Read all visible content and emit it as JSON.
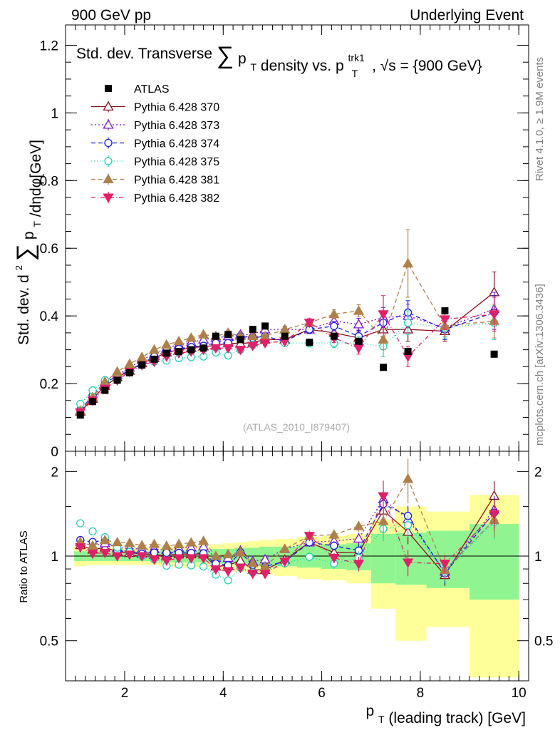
{
  "header": {
    "left": "900 GeV pp",
    "right": "Underlying Event"
  },
  "side_labels": {
    "top": "Rivet 4.1.0, ≥ 1.9M events",
    "bottom": "mcplots.cern.ch [arXiv:1306.3436]"
  },
  "chart_data": {
    "type": "scatter",
    "title": "Std. dev. Transverse ∑ pT density vs. pT trk1, √s = {900 GeV}",
    "title_parts": {
      "prefix": "Std. dev. Transverse",
      "sum": "∑",
      "p": "p",
      "T": "T",
      "middle": "density vs. p",
      "trk1": "trk1",
      "T2": "T",
      "suffix": ", √s = {900 GeV}"
    },
    "ylabel": "Std. dev. d²∑ pT /dηdφ[GeV]",
    "ylabel_parts": {
      "prefix": "Std. dev. d",
      "sq": "2",
      "sum": "∑",
      "p": "p",
      "T": "T",
      "suffix": "/dηdφ[GeV]"
    },
    "xlabel": "pT (leading track) [GeV]",
    "xlabel_parts": {
      "p": "p",
      "T": "T",
      "suffix": "(leading track) [GeV]"
    },
    "ratio_ylabel": "Ratio to ATLAS",
    "watermark": "(ATLAS_2010_I879407)",
    "xlim": [
      0.8,
      10.2
    ],
    "ylim": [
      0,
      1.26
    ],
    "ratio_ylim": [
      0.36,
      2.36
    ],
    "x_ticks": [
      2,
      4,
      6,
      8,
      10
    ],
    "x_tick_labels": [
      "2",
      "4",
      "6",
      "8",
      "10"
    ],
    "y_ticks": [
      0,
      0.2,
      0.4,
      0.6,
      0.8,
      1.0,
      1.2
    ],
    "y_tick_labels": [
      "0",
      "0.2",
      "0.4",
      "0.6",
      "0.8",
      "1",
      "1.2"
    ],
    "ratio_ticks": [
      0.5,
      1,
      2
    ],
    "ratio_tick_labels": [
      "0.5",
      "1",
      "2"
    ],
    "x": [
      1.1,
      1.35,
      1.6,
      1.85,
      2.1,
      2.35,
      2.6,
      2.85,
      3.1,
      3.35,
      3.6,
      3.85,
      4.1,
      4.35,
      4.6,
      4.85,
      5.25,
      5.75,
      6.25,
      6.75,
      7.25,
      7.75,
      8.5,
      9.5
    ],
    "reference": {
      "name": "ATLAS",
      "values": [
        0.107,
        0.147,
        0.18,
        0.21,
        0.232,
        0.255,
        0.272,
        0.29,
        0.295,
        0.3,
        0.305,
        0.34,
        0.345,
        0.33,
        0.36,
        0.37,
        0.34,
        0.322,
        0.34,
        0.325,
        0.248,
        0.295,
        0.415,
        0.287
      ],
      "band_stat": [
        0.04,
        0.04,
        0.04,
        0.04,
        0.04,
        0.04,
        0.04,
        0.05,
        0.05,
        0.05,
        0.05,
        0.06,
        0.06,
        0.07,
        0.07,
        0.08,
        0.08,
        0.09,
        0.1,
        0.11,
        0.2,
        0.21,
        0.23,
        0.3
      ],
      "band_tot": [
        0.08,
        0.07,
        0.07,
        0.07,
        0.07,
        0.07,
        0.07,
        0.08,
        0.09,
        0.09,
        0.09,
        0.1,
        0.11,
        0.12,
        0.13,
        0.14,
        0.15,
        0.17,
        0.18,
        0.2,
        0.35,
        0.5,
        0.44,
        0.65
      ]
    },
    "series": [
      {
        "name": "Pythia 6.428 370",
        "color": "#8b0f1e",
        "marker": "tri-up-open",
        "dash": "",
        "values": [
          0.117,
          0.155,
          0.193,
          0.218,
          0.238,
          0.26,
          0.275,
          0.292,
          0.3,
          0.305,
          0.31,
          0.312,
          0.32,
          0.318,
          0.322,
          0.33,
          0.33,
          0.36,
          0.35,
          0.335,
          0.36,
          0.36,
          0.355,
          0.47
        ],
        "errors": [
          0.004,
          0.004,
          0.004,
          0.004,
          0.004,
          0.004,
          0.005,
          0.005,
          0.005,
          0.006,
          0.006,
          0.006,
          0.007,
          0.007,
          0.008,
          0.008,
          0.009,
          0.012,
          0.014,
          0.018,
          0.03,
          0.035,
          0.03,
          0.06
        ]
      },
      {
        "name": "Pythia 6.428 373",
        "color": "#8010d0",
        "marker": "tri-up-open",
        "dash": "2,3",
        "values": [
          0.12,
          0.16,
          0.2,
          0.225,
          0.247,
          0.27,
          0.288,
          0.305,
          0.315,
          0.322,
          0.33,
          0.335,
          0.34,
          0.345,
          0.345,
          0.36,
          0.36,
          0.36,
          0.385,
          0.375,
          0.395,
          0.4,
          0.365,
          0.42
        ],
        "errors": [
          0.004,
          0.004,
          0.004,
          0.004,
          0.004,
          0.004,
          0.005,
          0.005,
          0.005,
          0.006,
          0.006,
          0.006,
          0.007,
          0.007,
          0.008,
          0.008,
          0.009,
          0.012,
          0.014,
          0.018,
          0.03,
          0.035,
          0.03,
          0.05
        ]
      },
      {
        "name": "Pythia 6.428 374",
        "color": "#1a1adc",
        "marker": "circle-open",
        "dash": "6,4",
        "values": [
          0.122,
          0.165,
          0.205,
          0.22,
          0.24,
          0.26,
          0.28,
          0.298,
          0.303,
          0.308,
          0.312,
          0.32,
          0.32,
          0.34,
          0.335,
          0.34,
          0.325,
          0.36,
          0.37,
          0.34,
          0.38,
          0.41,
          0.36,
          0.41
        ],
        "errors": [
          0.004,
          0.004,
          0.004,
          0.004,
          0.004,
          0.004,
          0.005,
          0.005,
          0.005,
          0.006,
          0.006,
          0.006,
          0.007,
          0.007,
          0.008,
          0.008,
          0.009,
          0.012,
          0.014,
          0.018,
          0.03,
          0.035,
          0.03,
          0.05
        ]
      },
      {
        "name": "Pythia 6.428 375",
        "color": "#20d0b8",
        "marker": "circle-open",
        "dash": "1,3",
        "values": [
          0.14,
          0.18,
          0.21,
          0.225,
          0.24,
          0.255,
          0.265,
          0.268,
          0.275,
          0.278,
          0.28,
          0.292,
          0.283,
          0.3,
          0.315,
          0.33,
          0.32,
          0.32,
          0.32,
          0.32,
          0.31,
          0.38,
          0.365,
          0.38
        ],
        "errors": [
          0.004,
          0.004,
          0.004,
          0.004,
          0.004,
          0.004,
          0.005,
          0.005,
          0.005,
          0.006,
          0.006,
          0.006,
          0.007,
          0.007,
          0.008,
          0.008,
          0.009,
          0.012,
          0.014,
          0.018,
          0.03,
          0.035,
          0.03,
          0.05
        ]
      },
      {
        "name": "Pythia 6.428 381",
        "color": "#b0804a",
        "marker": "tri-up-filled",
        "dash": "6,4",
        "values": [
          0.12,
          0.16,
          0.205,
          0.235,
          0.258,
          0.278,
          0.3,
          0.315,
          0.325,
          0.335,
          0.345,
          0.34,
          0.35,
          0.34,
          0.34,
          0.34,
          0.36,
          0.38,
          0.405,
          0.415,
          0.33,
          0.555,
          0.37,
          0.385
        ],
        "errors": [
          0.004,
          0.004,
          0.004,
          0.004,
          0.004,
          0.004,
          0.005,
          0.005,
          0.005,
          0.006,
          0.006,
          0.006,
          0.007,
          0.007,
          0.008,
          0.008,
          0.009,
          0.012,
          0.014,
          0.018,
          0.03,
          0.1,
          0.03,
          0.05
        ]
      },
      {
        "name": "Pythia 6.428 382",
        "color": "#e0206a",
        "marker": "tri-down-filled",
        "dash": "6,3,1,3",
        "values": [
          0.115,
          0.15,
          0.185,
          0.21,
          0.235,
          0.255,
          0.265,
          0.28,
          0.29,
          0.295,
          0.3,
          0.305,
          0.305,
          0.3,
          0.312,
          0.32,
          0.325,
          0.38,
          0.335,
          0.305,
          0.405,
          0.28,
          0.39,
          0.405
        ],
        "errors": [
          0.004,
          0.004,
          0.004,
          0.004,
          0.004,
          0.004,
          0.005,
          0.005,
          0.005,
          0.006,
          0.006,
          0.006,
          0.007,
          0.007,
          0.008,
          0.008,
          0.009,
          0.012,
          0.014,
          0.018,
          0.055,
          0.03,
          0.03,
          0.05
        ]
      }
    ]
  }
}
